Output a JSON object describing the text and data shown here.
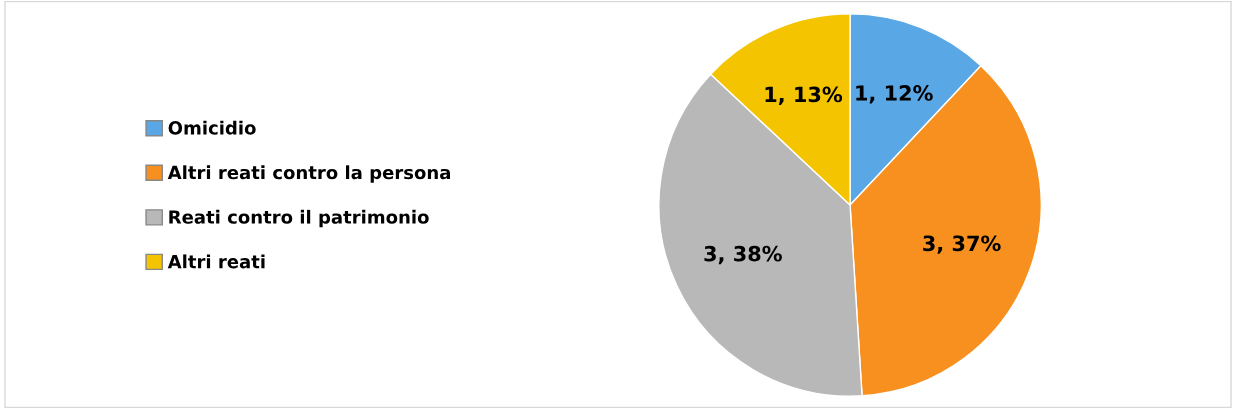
{
  "chart_data": {
    "type": "pie",
    "categories": [
      "Omicidio",
      "Altri reati contro la persona",
      "Reati contro il patrimonio",
      "Altri reati"
    ],
    "values": [
      12,
      37,
      38,
      13
    ],
    "value_labels": [
      "1, 12%",
      "3, 37%",
      "3, 38%",
      "1, 13%"
    ],
    "colors": [
      "#5aa7e6",
      "#f7901e",
      "#b8b8b8",
      "#f5c400"
    ],
    "legend": "left"
  }
}
